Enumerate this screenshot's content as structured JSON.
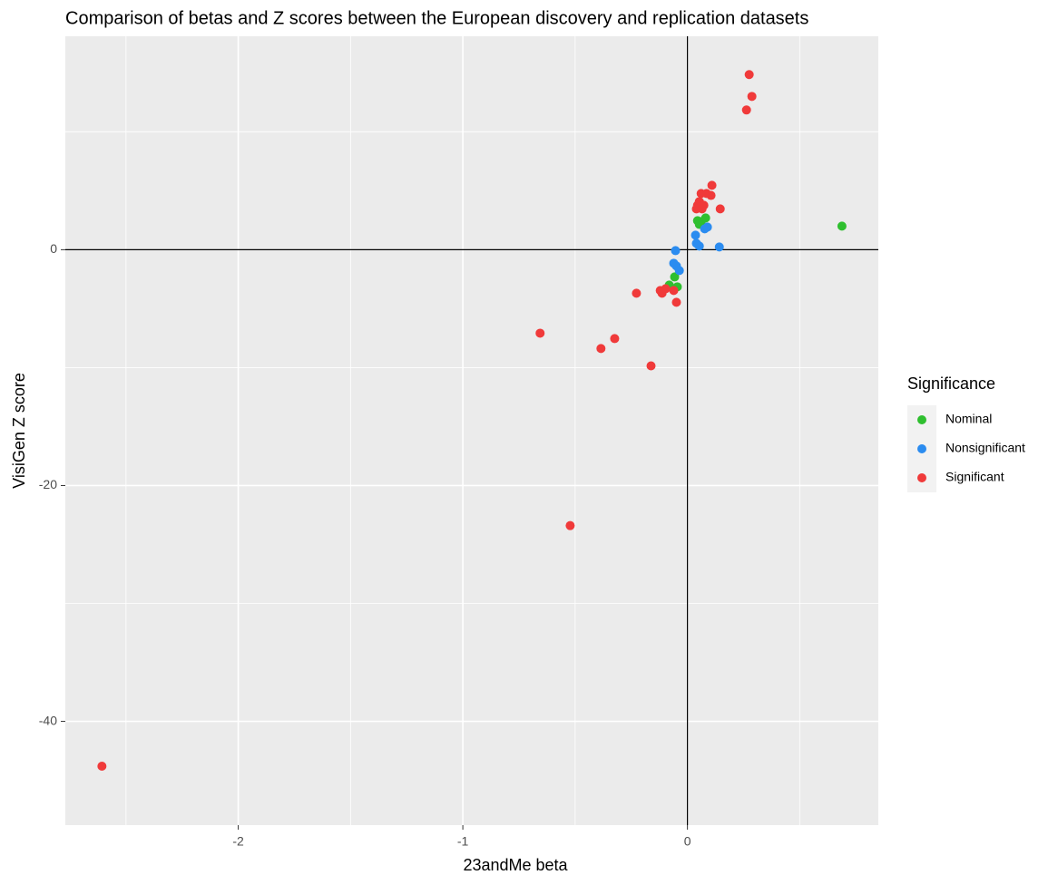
{
  "chart_data": {
    "type": "scatter",
    "title": "Comparison of betas and Z scores between the European discovery and replication datasets",
    "xlabel": "23andMe beta",
    "ylabel": "VisiGen Z score",
    "legend_title": "Significance",
    "legend": "right",
    "grid": true,
    "xlim": [
      -2.77,
      0.85
    ],
    "ylim": [
      -48.8,
      18.1
    ],
    "xticks": [
      -2,
      -1,
      0
    ],
    "yticks": [
      -40,
      -20,
      0
    ],
    "hline": 0,
    "vline": 0,
    "series": [
      {
        "name": "Nominal",
        "color": "#2fbf2f",
        "x": [
          0.688,
          0.045,
          0.061,
          0.081,
          0.053,
          -0.057,
          -0.081,
          -0.045
        ],
        "y": [
          2.0,
          2.46,
          2.38,
          2.69,
          2.15,
          -2.31,
          -3.0,
          -3.15
        ]
      },
      {
        "name": "Nonsignificant",
        "color": "#2b8cf0",
        "x": [
          0.036,
          0.077,
          0.089,
          0.04,
          0.053,
          0.142,
          -0.053,
          -0.061,
          -0.049,
          -0.036
        ],
        "y": [
          1.23,
          1.77,
          1.92,
          0.54,
          0.31,
          0.23,
          -0.08,
          -1.15,
          -1.38,
          -1.77
        ]
      },
      {
        "name": "Significant",
        "color": "#f03a3a",
        "x": [
          0.275,
          0.287,
          0.263,
          0.109,
          0.061,
          0.085,
          0.105,
          0.053,
          0.045,
          0.073,
          0.04,
          0.065,
          0.146,
          -0.227,
          -0.121,
          -0.113,
          -0.097,
          -0.061,
          -0.049,
          -0.656,
          -0.324,
          -0.385,
          -0.162,
          -0.522,
          -2.607
        ],
        "y": [
          14.85,
          13.0,
          11.85,
          5.46,
          4.77,
          4.77,
          4.6,
          4.08,
          3.77,
          3.77,
          3.46,
          3.46,
          3.46,
          -3.69,
          -3.46,
          -3.69,
          -3.31,
          -3.46,
          -4.46,
          -7.08,
          -7.54,
          -8.38,
          -9.85,
          -23.4,
          -43.8
        ]
      }
    ]
  }
}
